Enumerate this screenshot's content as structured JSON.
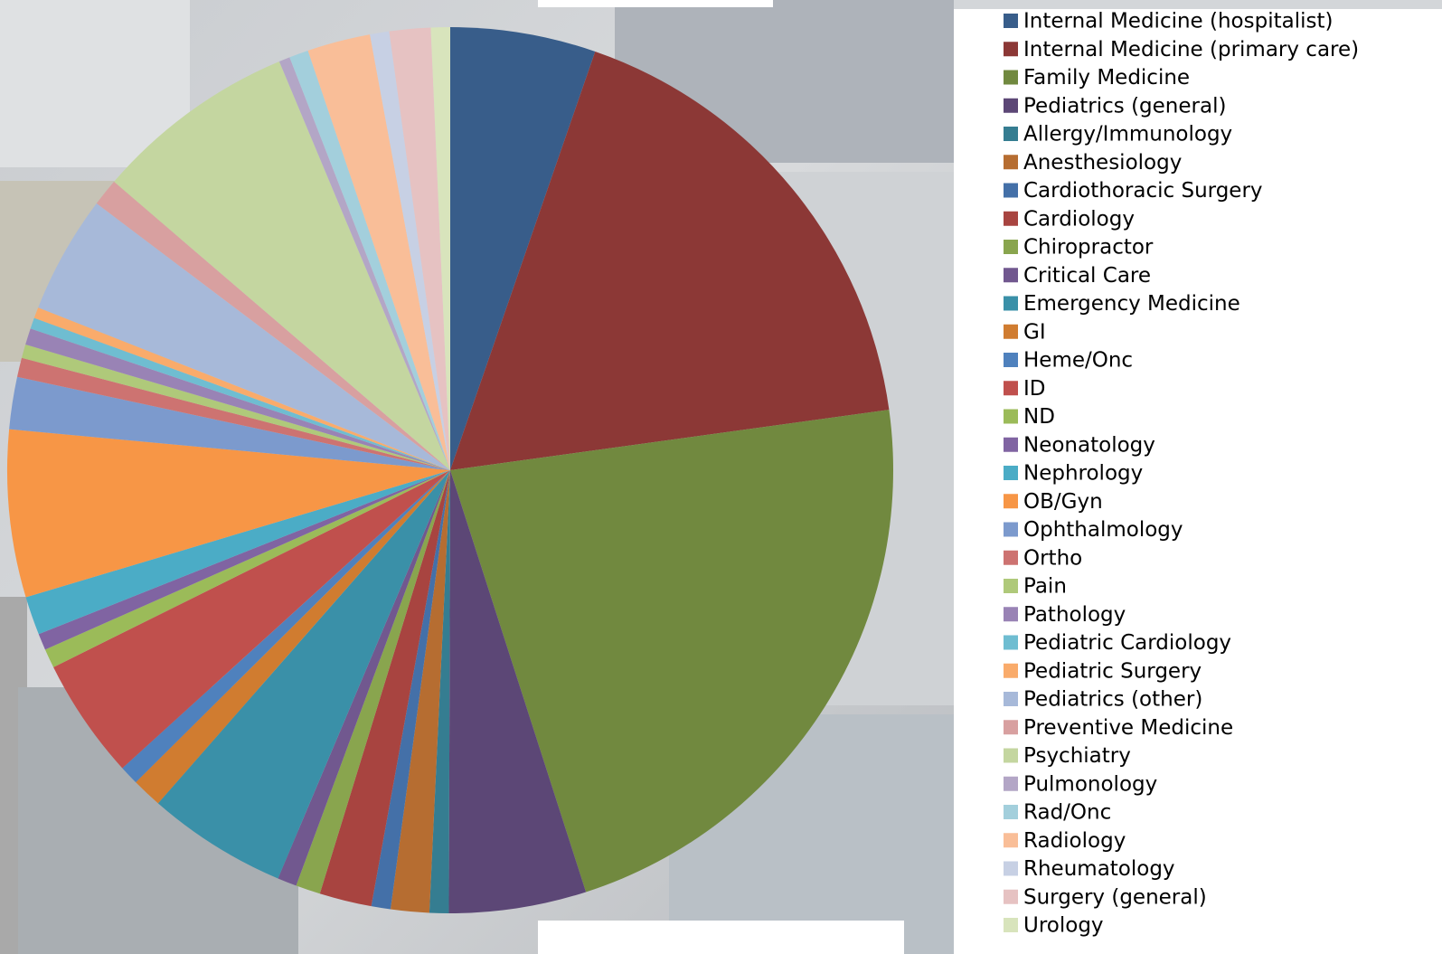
{
  "chart_data": {
    "type": "pie",
    "categories": [
      "Internal Medicine (hospitalist)",
      "Internal Medicine (primary care)",
      "Family Medicine",
      "Pediatrics (general)",
      "Allergy/Immunology",
      "Anesthesiology",
      "Cardiothoracic Surgery",
      "Cardiology",
      "Chiropractor",
      "Critical Care",
      "Emergency Medicine",
      "GI",
      "Heme/Onc",
      "ID",
      "ND",
      "Neonatology",
      "Nephrology",
      "OB/Gyn",
      "Ophthalmology",
      "Ortho",
      "Pain",
      "Pathology",
      "Pediatric Cardiology",
      "Pediatric Surgery",
      "Pediatrics (other)",
      "Preventive Medicine",
      "Psychiatry",
      "Pulmonology",
      "Rad/Onc",
      "Radiology",
      "Rheumatology",
      "Surgery (general)",
      "Urology"
    ],
    "values": [
      5.3,
      17.5,
      22.2,
      5.0,
      0.7,
      1.4,
      0.7,
      1.9,
      0.9,
      0.7,
      5.1,
      1.1,
      0.7,
      4.4,
      0.7,
      0.6,
      1.4,
      6.1,
      1.9,
      0.7,
      0.5,
      0.6,
      0.4,
      0.4,
      4.3,
      1.0,
      7.4,
      0.4,
      0.7,
      2.3,
      0.7,
      1.5,
      0.7
    ],
    "colors": [
      "#385D8A",
      "#8C3836",
      "#71893F",
      "#5C4776",
      "#357D91",
      "#B66D31",
      "#4470A8",
      "#A84440",
      "#89A54E",
      "#71588F",
      "#3A90A8",
      "#D07C30",
      "#4F81BD",
      "#C0504D",
      "#9BBB59",
      "#8064A2",
      "#4BACC6",
      "#F79646",
      "#7C9ACD",
      "#CD7371",
      "#AFC97A",
      "#9983B5",
      "#6FBDD1",
      "#F9AB6B",
      "#A7B9D9",
      "#D8A0A0",
      "#C4D6A0",
      "#B3A6C6",
      "#A3CFDC",
      "#F9BE98",
      "#C7D0E4",
      "#E6C2C2",
      "#D8E4BC"
    ],
    "legend": "right"
  }
}
